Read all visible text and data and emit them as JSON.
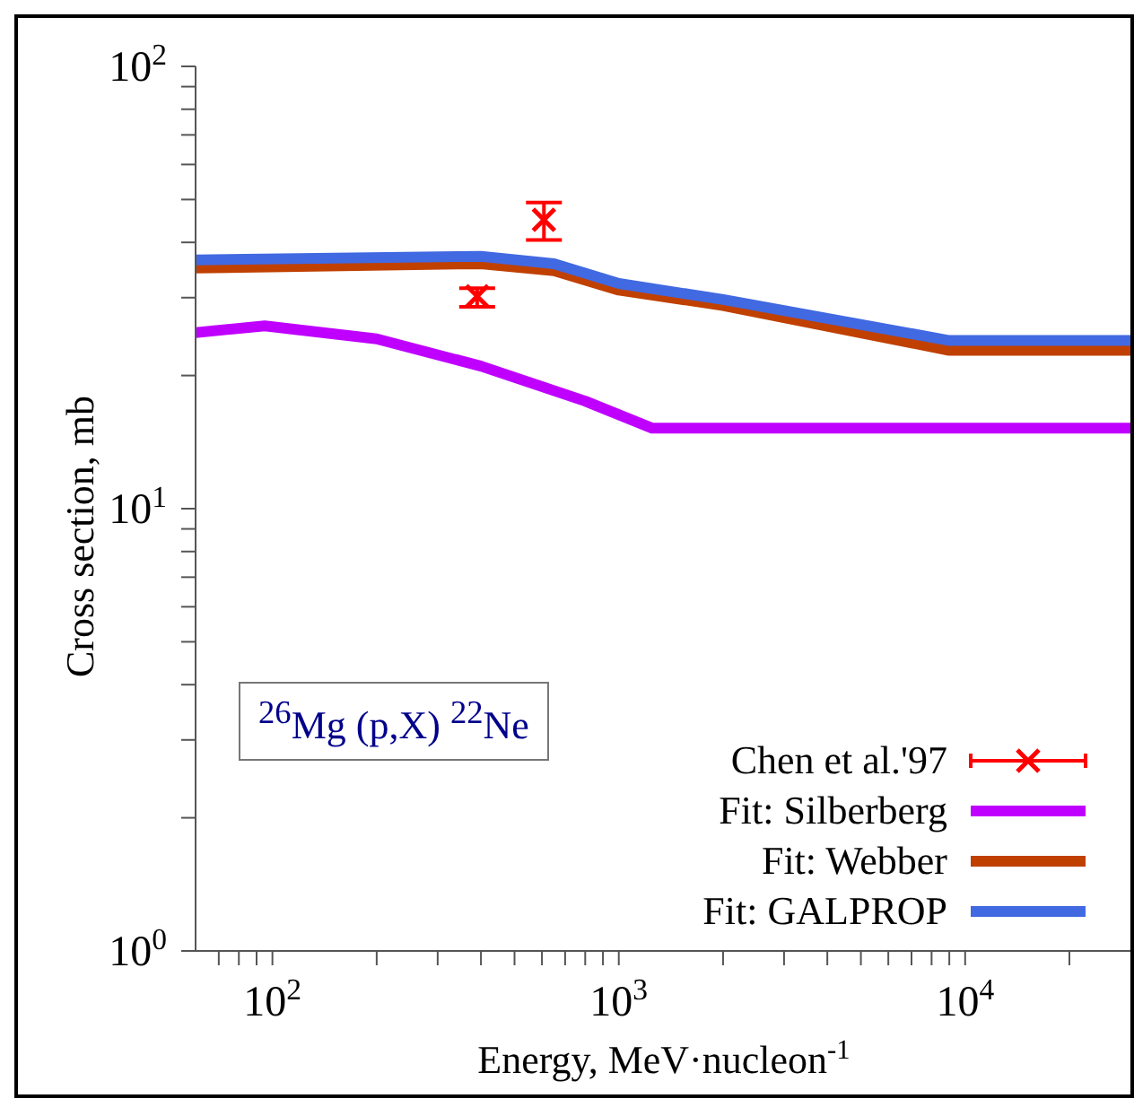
{
  "chart_data": {
    "type": "line",
    "xlabel": "Energy, MeV·nucleon$^{-1}$",
    "ylabel": "Cross section, mb",
    "log": "xy",
    "grid": false,
    "legend": "bottom right",
    "xlim": [
      60,
      30000
    ],
    "ylim": [
      1,
      100
    ],
    "xticks": [
      {
        "value": 70,
        "label": null
      },
      {
        "value": 80,
        "label": null
      },
      {
        "value": 90,
        "label": null
      },
      {
        "value": 100,
        "label": "10$^{2}$"
      },
      {
        "value": 200,
        "label": null
      },
      {
        "value": 300,
        "label": null
      },
      {
        "value": 400,
        "label": null
      },
      {
        "value": 500,
        "label": null
      },
      {
        "value": 600,
        "label": null
      },
      {
        "value": 700,
        "label": null
      },
      {
        "value": 800,
        "label": null
      },
      {
        "value": 900,
        "label": null
      },
      {
        "value": 1000,
        "label": "10$^{3}$"
      },
      {
        "value": 2000,
        "label": null
      },
      {
        "value": 3000,
        "label": null
      },
      {
        "value": 4000,
        "label": null
      },
      {
        "value": 5000,
        "label": null
      },
      {
        "value": 6000,
        "label": null
      },
      {
        "value": 7000,
        "label": null
      },
      {
        "value": 8000,
        "label": null
      },
      {
        "value": 9000,
        "label": null
      },
      {
        "value": 10000,
        "label": "10$^{4}$"
      },
      {
        "value": 20000,
        "label": null
      }
    ],
    "yticks": [
      {
        "value": 1,
        "label": "10$^{0}$"
      },
      {
        "value": 2,
        "label": null
      },
      {
        "value": 3,
        "label": null
      },
      {
        "value": 4,
        "label": null
      },
      {
        "value": 5,
        "label": null
      },
      {
        "value": 6,
        "label": null
      },
      {
        "value": 7,
        "label": null
      },
      {
        "value": 8,
        "label": null
      },
      {
        "value": 9,
        "label": null
      },
      {
        "value": 10,
        "label": "10$^{1}$"
      },
      {
        "value": 20,
        "label": null
      },
      {
        "value": 30,
        "label": null
      },
      {
        "value": 40,
        "label": null
      },
      {
        "value": 50,
        "label": null
      },
      {
        "value": 60,
        "label": null
      },
      {
        "value": 70,
        "label": null
      },
      {
        "value": 80,
        "label": null
      },
      {
        "value": 90,
        "label": null
      },
      {
        "value": 100,
        "label": "10$^{2}$"
      }
    ],
    "annotations": [
      "$^{26}$Mg (p,X) $^{22}$Ne"
    ],
    "series": [
      {
        "name": "Chen et al.'97",
        "type": "scatter",
        "marker": "cross",
        "color": "#ff0000",
        "x": [
          390,
          608
        ],
        "values": [
          30.2,
          45
        ],
        "errors": [
          [
            28.6,
            31.5
          ],
          [
            40.5,
            49.2
          ]
        ]
      },
      {
        "name": "Fit: Silberberg",
        "marker": "none",
        "color": "#bf00ff",
        "x": [
          60,
          95,
          200,
          400,
          800,
          1250,
          30000
        ],
        "values": [
          25,
          25.9,
          24.2,
          21,
          17.5,
          15.2,
          15.2
        ]
      },
      {
        "name": "Fit: Webber",
        "marker": "none",
        "color": "#c04000",
        "x": [
          60,
          400,
          650,
          1000,
          2000,
          9000,
          30000
        ],
        "values": [
          35,
          35.8,
          34.5,
          31.2,
          28.8,
          22.8,
          22.8
        ]
      },
      {
        "name": "Fit: GALPROP",
        "marker": "none",
        "color": "#4169e1",
        "x": [
          60,
          400,
          650,
          1000,
          2000,
          9000,
          30000
        ],
        "values": [
          36.5,
          37.2,
          35.8,
          32.3,
          29.7,
          24,
          24
        ]
      }
    ]
  }
}
